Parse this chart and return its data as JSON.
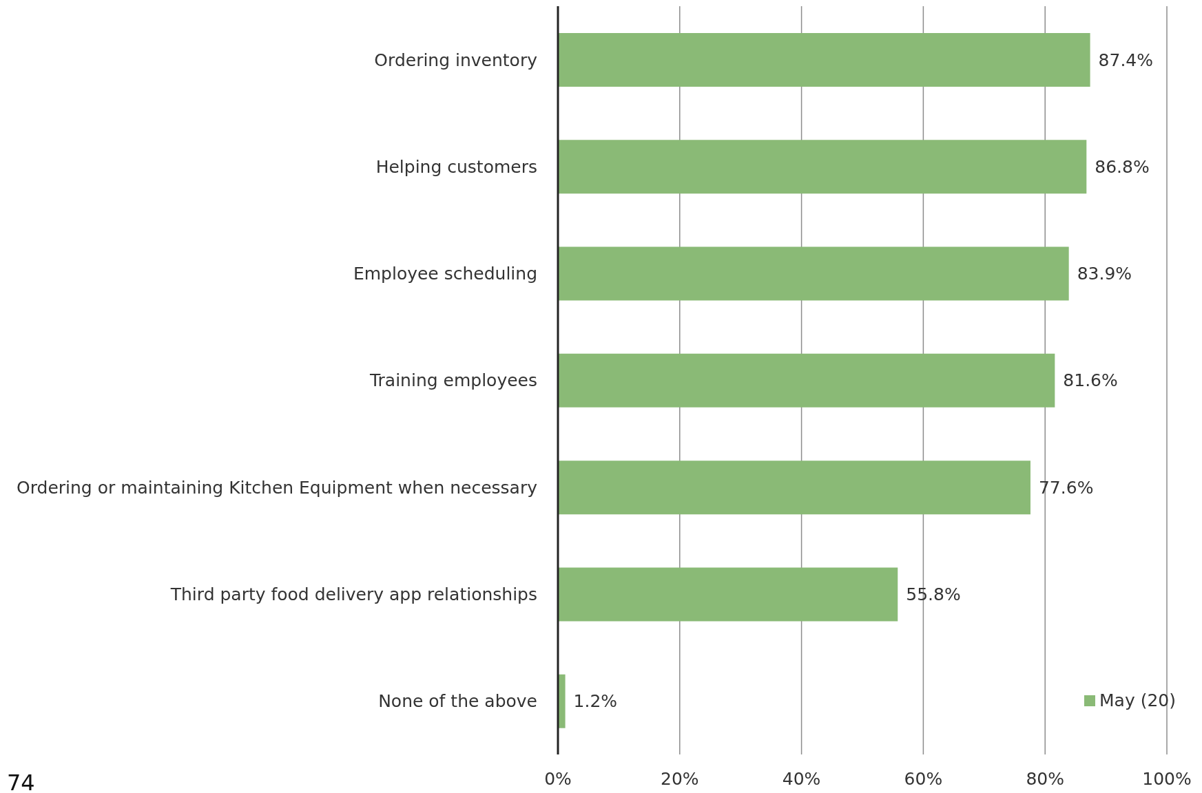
{
  "chart_data": {
    "type": "bar",
    "orientation": "horizontal",
    "categories": [
      "Ordering inventory",
      "Helping customers",
      "Employee scheduling",
      "Training employees",
      "Ordering or maintaining Kitchen Equipment when necessary",
      "Third party food delivery app relationships",
      "None of the above"
    ],
    "series": [
      {
        "name": "May (20)",
        "color": "#8aba76",
        "values": [
          87.4,
          86.8,
          83.9,
          81.6,
          77.6,
          55.8,
          1.2
        ],
        "value_labels": [
          "87.4%",
          "86.8%",
          "83.9%",
          "81.6%",
          "77.6%",
          "55.8%",
          "1.2%"
        ]
      }
    ],
    "xlim": [
      0,
      100
    ],
    "xticks": [
      {
        "value": 0,
        "label": "0%"
      },
      {
        "value": 20,
        "label": "20%"
      },
      {
        "value": 40,
        "label": "40%"
      },
      {
        "value": 60,
        "label": "60%"
      },
      {
        "value": 80,
        "label": "80%"
      },
      {
        "value": 100,
        "label": "100%"
      }
    ],
    "grid": "x",
    "legend": "bottom right",
    "annotations": [
      "74"
    ]
  }
}
